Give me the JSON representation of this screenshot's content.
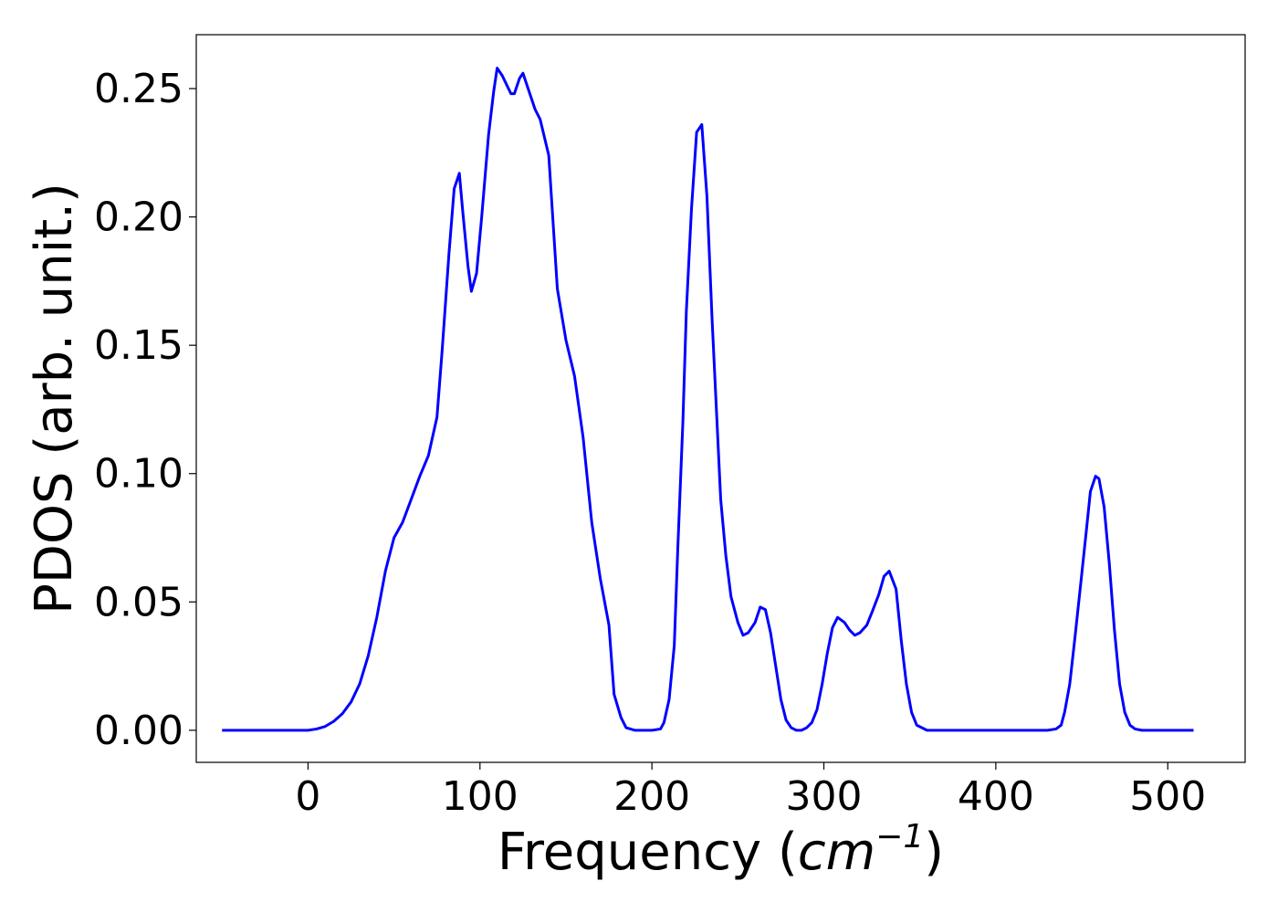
{
  "chart_data": {
    "type": "line",
    "xlabel_main": "Frequency (",
    "xlabel_unit": "cm",
    "xlabel_exp": "−1",
    "xlabel_close": ")",
    "ylabel": "PDOS (arb. unit.)",
    "xlim": [
      -65,
      545
    ],
    "ylim": [
      -0.0125,
      0.271
    ],
    "x_ticks": [
      0,
      100,
      200,
      300,
      400,
      500
    ],
    "y_ticks": [
      0.0,
      0.05,
      0.1,
      0.15,
      0.2,
      0.25
    ],
    "x_tick_labels": [
      "0",
      "100",
      "200",
      "300",
      "400",
      "500"
    ],
    "y_tick_labels": [
      "0.00",
      "0.05",
      "0.10",
      "0.15",
      "0.20",
      "0.25"
    ],
    "grid": false,
    "legend": "none",
    "series": [
      {
        "color": "#0000ff",
        "x": [
          -50,
          0,
          5,
          10,
          15,
          20,
          25,
          30,
          35,
          40,
          45,
          50,
          55,
          60,
          65,
          70,
          75,
          78,
          82,
          85,
          88,
          90,
          93,
          95,
          98,
          101,
          105,
          108,
          110,
          113,
          118,
          120,
          123,
          125,
          128,
          132,
          135,
          140,
          145,
          150,
          155,
          160,
          165,
          170,
          175,
          178,
          182,
          185,
          190,
          200,
          205,
          207,
          210,
          213,
          215,
          218,
          220,
          223,
          226,
          229,
          232,
          235,
          238,
          240,
          243,
          246,
          250,
          253,
          256,
          260,
          263,
          266,
          269,
          272,
          275,
          278,
          281,
          284,
          287,
          290,
          293,
          296,
          299,
          302,
          305,
          308,
          312,
          315,
          318,
          321,
          325,
          328,
          332,
          335,
          338,
          342,
          345,
          348,
          351,
          354,
          360,
          380,
          400,
          420,
          430,
          435,
          438,
          440,
          443,
          446,
          450,
          453,
          455,
          458,
          460,
          463,
          466,
          469,
          472,
          475,
          478,
          481,
          485,
          490,
          515
        ],
        "y": [
          0.0,
          0.0,
          0.0005,
          0.0015,
          0.0035,
          0.0065,
          0.011,
          0.018,
          0.029,
          0.044,
          0.062,
          0.075,
          0.081,
          0.09,
          0.099,
          0.107,
          0.122,
          0.148,
          0.186,
          0.211,
          0.217,
          0.202,
          0.181,
          0.171,
          0.178,
          0.2,
          0.232,
          0.249,
          0.258,
          0.255,
          0.248,
          0.248,
          0.254,
          0.256,
          0.25,
          0.242,
          0.238,
          0.224,
          0.172,
          0.152,
          0.138,
          0.114,
          0.081,
          0.059,
          0.041,
          0.014,
          0.005,
          0.001,
          0.0,
          0.0,
          0.0005,
          0.003,
          0.012,
          0.033,
          0.07,
          0.12,
          0.163,
          0.203,
          0.233,
          0.236,
          0.208,
          0.16,
          0.118,
          0.09,
          0.068,
          0.052,
          0.042,
          0.037,
          0.038,
          0.042,
          0.048,
          0.047,
          0.038,
          0.025,
          0.012,
          0.004,
          0.001,
          0.0,
          0.0,
          0.001,
          0.003,
          0.008,
          0.018,
          0.03,
          0.04,
          0.044,
          0.042,
          0.039,
          0.037,
          0.038,
          0.041,
          0.046,
          0.053,
          0.06,
          0.062,
          0.055,
          0.035,
          0.018,
          0.007,
          0.002,
          0.0,
          0.0,
          0.0,
          0.0,
          0.0,
          0.0005,
          0.002,
          0.007,
          0.018,
          0.036,
          0.061,
          0.08,
          0.093,
          0.099,
          0.098,
          0.087,
          0.065,
          0.039,
          0.018,
          0.007,
          0.002,
          0.0005,
          0.0,
          0.0,
          0.0
        ]
      }
    ]
  }
}
